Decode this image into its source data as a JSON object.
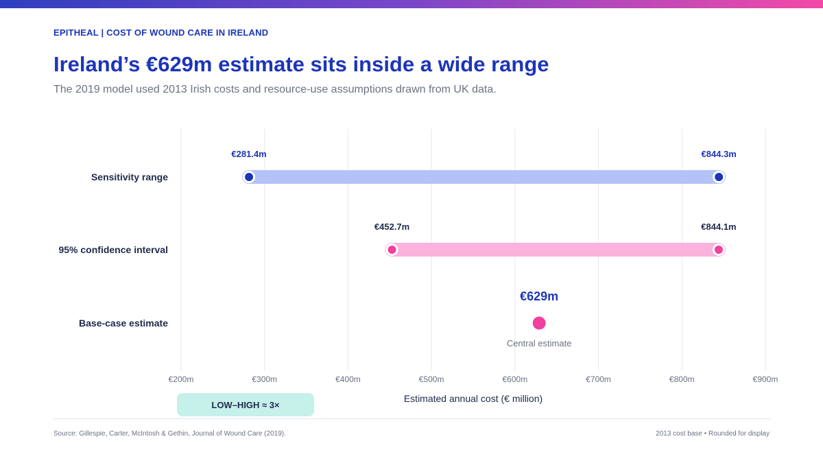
{
  "header": {
    "eyebrow": "EPITHEAL | COST OF WOUND CARE IN IRELAND",
    "title": "Ireland’s €629m estimate sits inside a wide range",
    "subtitle": "The 2019 model used 2013 Irish costs and resource-use assumptions drawn from UK data."
  },
  "chart_data": {
    "type": "range-dot",
    "title": "Ireland’s €629m estimate sits inside a wide range",
    "xlabel": "Estimated annual cost (€ million)",
    "xlim": [
      200,
      900
    ],
    "x_ticks": [
      {
        "value": 200,
        "label": "€200m"
      },
      {
        "value": 300,
        "label": "€300m"
      },
      {
        "value": 400,
        "label": "€400m"
      },
      {
        "value": 500,
        "label": "€500m"
      },
      {
        "value": 600,
        "label": "€600m"
      },
      {
        "value": 700,
        "label": "€700m"
      },
      {
        "value": 800,
        "label": "€800m"
      },
      {
        "value": 900,
        "label": "€900m"
      }
    ],
    "grid": true,
    "rows": [
      {
        "label": "Sensitivity range",
        "low": 281.4,
        "high": 844.3,
        "low_label": "€281.4m",
        "high_label": "€844.3m",
        "bar_color": "#b3c3f7",
        "dot_color": "#1d35b8",
        "label_color": "#1d35b8"
      },
      {
        "label": "95% confidence interval",
        "low": 452.7,
        "high": 844.1,
        "low_label": "€452.7m",
        "high_label": "€844.1m",
        "bar_color": "#f9b3dc",
        "dot_color": "#f2409f",
        "label_color": "#1f2a4a"
      },
      {
        "label": "Base-case estimate",
        "value": 629,
        "value_label": "€629m",
        "note": "Central estimate",
        "dot_color": "#f2409f",
        "label_color": "#1d35b8"
      }
    ]
  },
  "badge": {
    "text": "LOW–HIGH ≈ 3×"
  },
  "footer": {
    "source": "Source: Gillespie, Carter, McIntosh & Gethin, Journal of Wound Care (2019).",
    "note": "2013 cost base • Rounded for display"
  },
  "colors": {
    "accent": "#1d35b8",
    "pink": "#f2409f",
    "text": "#1f2a4a",
    "muted": "#6b7183",
    "grid": "#e3e6ee",
    "badge_bg": "#c6f0ea"
  }
}
